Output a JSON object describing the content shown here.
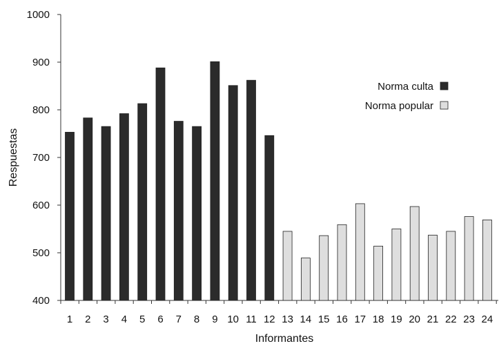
{
  "chart_data": {
    "type": "bar",
    "title": "",
    "xlabel": "Informantes",
    "ylabel": "Respuestas",
    "ylim": [
      400,
      1000
    ],
    "yticks": [
      400,
      500,
      600,
      700,
      800,
      900,
      1000
    ],
    "categories": [
      "1",
      "2",
      "3",
      "4",
      "5",
      "6",
      "7",
      "8",
      "9",
      "10",
      "11",
      "12",
      "13",
      "14",
      "15",
      "16",
      "17",
      "18",
      "19",
      "20",
      "21",
      "22",
      "23",
      "24"
    ],
    "series": [
      {
        "name": "Norma culta",
        "color": "#2b2b2b",
        "values": [
          753,
          783,
          765,
          792,
          813,
          888,
          776,
          765,
          901,
          851,
          862,
          746,
          null,
          null,
          null,
          null,
          null,
          null,
          null,
          null,
          null,
          null,
          null,
          null
        ]
      },
      {
        "name": "Norma popular",
        "color": "#dedede",
        "values": [
          null,
          null,
          null,
          null,
          null,
          null,
          null,
          null,
          null,
          null,
          null,
          null,
          545,
          489,
          536,
          559,
          603,
          514,
          550,
          597,
          537,
          545,
          576,
          569
        ]
      }
    ],
    "legend_position": "top-right",
    "grid": false
  }
}
